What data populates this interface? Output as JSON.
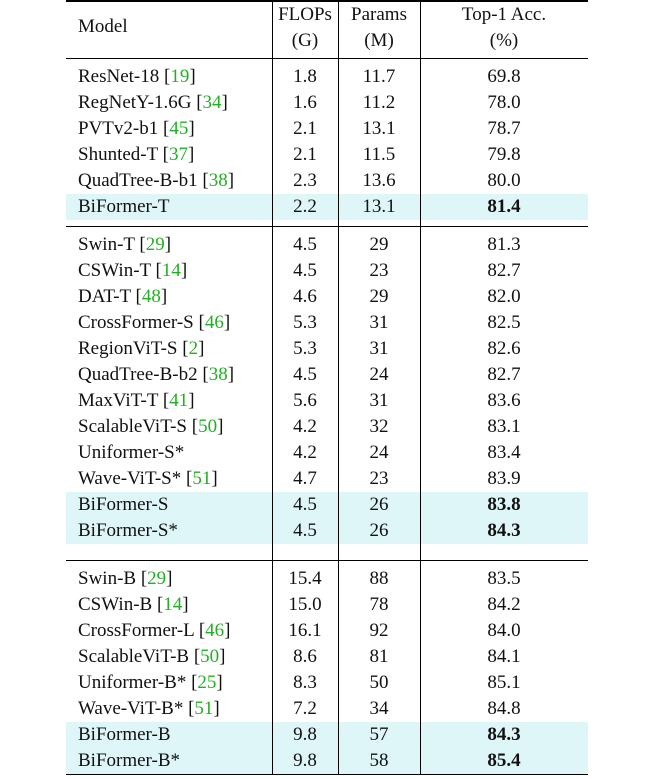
{
  "header": {
    "model": "Model",
    "flops": "FLOPs",
    "flops_unit": "(G)",
    "params": "Params",
    "params_unit": "(M)",
    "acc": "Top-1 Acc.",
    "acc_unit": "(%)"
  },
  "groups": [
    {
      "rows": [
        {
          "name": "ResNet-18 ",
          "ref": "19",
          "flops": "1.8",
          "params": "11.7",
          "acc": "69.8"
        },
        {
          "name": "RegNetY-1.6G ",
          "ref": "34",
          "flops": "1.6",
          "params": "11.2",
          "acc": "78.0"
        },
        {
          "name": "PVTv2-b1 ",
          "ref": "45",
          "flops": "2.1",
          "params": "13.1",
          "acc": "78.7"
        },
        {
          "name": "Shunted-T ",
          "ref": "37",
          "flops": "2.1",
          "params": "11.5",
          "acc": "79.8"
        },
        {
          "name": "QuadTree-B-b1 ",
          "ref": "38",
          "flops": "2.3",
          "params": "13.6",
          "acc": "80.0"
        },
        {
          "name": "BiFormer-T",
          "ref": "",
          "flops": "2.2",
          "params": "13.1",
          "acc": "81.4",
          "highlight": true,
          "bold_acc": true
        }
      ]
    },
    {
      "rows": [
        {
          "name": "Swin-T ",
          "ref": "29",
          "flops": "4.5",
          "params": "29",
          "acc": "81.3"
        },
        {
          "name": "CSWin-T ",
          "ref": "14",
          "flops": "4.5",
          "params": "23",
          "acc": "82.7"
        },
        {
          "name": "DAT-T ",
          "ref": "48",
          "flops": "4.6",
          "params": "29",
          "acc": "82.0"
        },
        {
          "name": "CrossFormer-S ",
          "ref": "46",
          "flops": "5.3",
          "params": "31",
          "acc": "82.5"
        },
        {
          "name": "RegionViT-S ",
          "ref": "2",
          "flops": "5.3",
          "params": "31",
          "acc": "82.6"
        },
        {
          "name": "QuadTree-B-b2 ",
          "ref": "38",
          "flops": "4.5",
          "params": "24",
          "acc": "82.7"
        },
        {
          "name": "MaxViT-T ",
          "ref": "41",
          "flops": "5.6",
          "params": "31",
          "acc": "83.6"
        },
        {
          "name": "ScalableViT-S ",
          "ref": "50",
          "flops": "4.2",
          "params": "32",
          "acc": "83.1"
        },
        {
          "name": "Uniformer-S*",
          "ref": "",
          "flops": "4.2",
          "params": "24",
          "acc": "83.4"
        },
        {
          "name": "Wave-ViT-S* ",
          "ref": "51",
          "flops": "4.7",
          "params": "23",
          "acc": "83.9"
        },
        {
          "name": "BiFormer-S",
          "ref": "",
          "flops": "4.5",
          "params": "26",
          "acc": "83.8",
          "highlight": true,
          "bold_acc": true
        },
        {
          "name": "BiFormer-S*",
          "ref": "",
          "flops": "4.5",
          "params": "26",
          "acc": "84.3",
          "highlight": true,
          "bold_acc": true
        }
      ]
    },
    {
      "rows": [
        {
          "name": "Swin-B ",
          "ref": "29",
          "flops": "15.4",
          "params": "88",
          "acc": "83.5"
        },
        {
          "name": "CSWin-B ",
          "ref": "14",
          "flops": "15.0",
          "params": "78",
          "acc": "84.2"
        },
        {
          "name": "CrossFormer-L ",
          "ref": "46",
          "flops": "16.1",
          "params": "92",
          "acc": "84.0"
        },
        {
          "name": "ScalableViT-B ",
          "ref": "50",
          "flops": "8.6",
          "params": "81",
          "acc": "84.1"
        },
        {
          "name": "Uniformer-B* ",
          "ref": "25",
          "flops": "8.3",
          "params": "50",
          "acc": "85.1"
        },
        {
          "name": "Wave-ViT-B* ",
          "ref": "51",
          "flops": "7.2",
          "params": "34",
          "acc": "84.8"
        },
        {
          "name": "BiFormer-B",
          "ref": "",
          "flops": "9.8",
          "params": "57",
          "acc": "84.3",
          "highlight": true,
          "bold_acc": true
        },
        {
          "name": "BiFormer-B*",
          "ref": "",
          "flops": "9.8",
          "params": "58",
          "acc": "85.4",
          "highlight": true,
          "bold_acc": true
        }
      ]
    }
  ]
}
